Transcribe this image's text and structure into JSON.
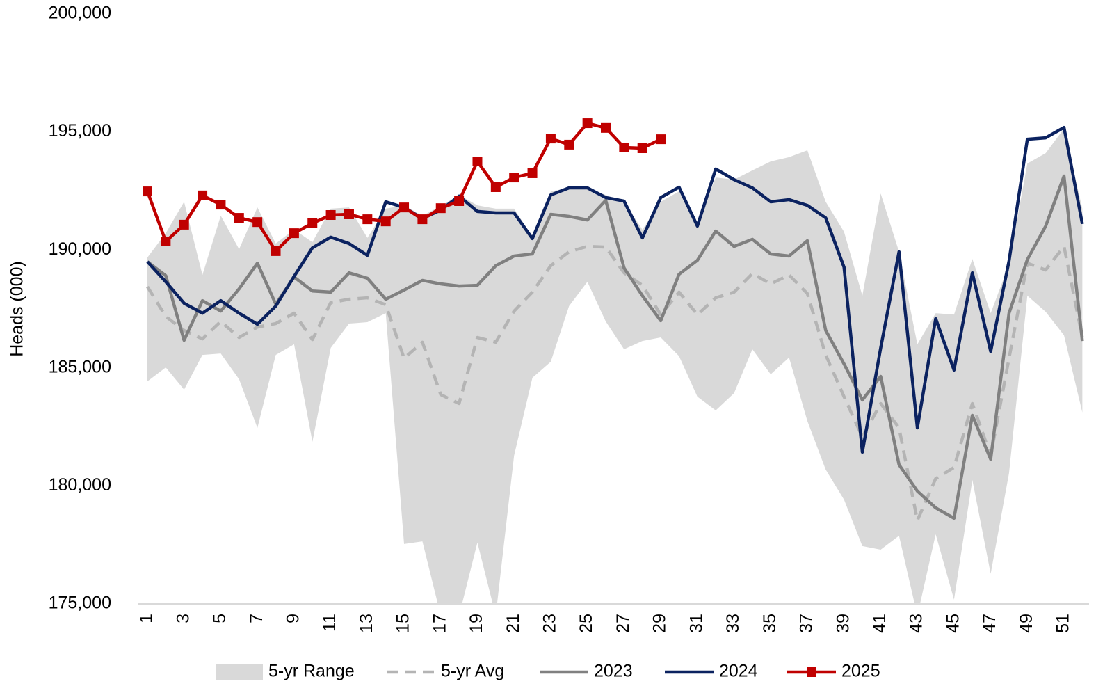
{
  "chart_data": {
    "type": "line",
    "ylabel": "Heads (000)",
    "categories": [
      "1",
      null,
      "3",
      null,
      "5",
      null,
      "7",
      null,
      "9",
      null,
      "11",
      null,
      "13",
      null,
      "15",
      null,
      "17",
      null,
      "19",
      null,
      "21",
      null,
      "23",
      null,
      "25",
      null,
      "27",
      null,
      "29",
      null,
      "31",
      null,
      "33",
      null,
      "35",
      null,
      "37",
      null,
      "39",
      null,
      "41",
      null,
      "43",
      null,
      "45",
      null,
      "47",
      null,
      "49",
      null,
      "51",
      null
    ],
    "ylim": [
      175000,
      200000
    ],
    "yticks": [
      {
        "value": 175000,
        "label": "175,000"
      },
      {
        "value": 180000,
        "label": "180,000"
      },
      {
        "value": 185000,
        "label": "185,000"
      },
      {
        "value": 190000,
        "label": "190,000"
      },
      {
        "value": 195000,
        "label": "195,000"
      },
      {
        "value": 200000,
        "label": "200,000"
      }
    ],
    "grid": false,
    "legend": "bottom",
    "band": {
      "name": "5-yr Range",
      "color": "#d9d9d9",
      "low": [
        184430,
        185020,
        184080,
        185550,
        185610,
        184520,
        182460,
        185550,
        186000,
        181870,
        185850,
        186880,
        186940,
        187320,
        177540,
        177650,
        174500,
        174500,
        177600,
        174500,
        181280,
        184580,
        185260,
        187620,
        188650,
        186970,
        185790,
        186140,
        186290,
        185500,
        183780,
        183200,
        183930,
        185790,
        184730,
        185440,
        182750,
        180690,
        179420,
        177450,
        177300,
        177890,
        174500,
        177950,
        175180,
        180250,
        176280,
        180540,
        188060,
        187380,
        186380,
        183110
      ],
      "high": [
        189680,
        190710,
        192040,
        188940,
        191450,
        190030,
        191800,
        190270,
        190860,
        190330,
        191750,
        191800,
        190510,
        191750,
        191890,
        191450,
        191860,
        192330,
        191890,
        191750,
        191750,
        190570,
        192480,
        192630,
        192630,
        192330,
        192040,
        190860,
        192040,
        192480,
        191160,
        193070,
        192980,
        193370,
        193750,
        193930,
        194220,
        192040,
        190770,
        188060,
        192390,
        189920,
        186000,
        187320,
        187260,
        189620,
        187320,
        189390,
        193660,
        194100,
        195140,
        191750
      ]
    },
    "series": [
      {
        "name": "5-yr Avg",
        "color": "#b4b4b4",
        "dash": true,
        "values": [
          188440,
          187180,
          186590,
          186230,
          186970,
          186290,
          186730,
          186880,
          187320,
          186200,
          187770,
          187910,
          187970,
          187680,
          185410,
          186090,
          183870,
          183490,
          186290,
          186090,
          187410,
          188210,
          189330,
          189920,
          190150,
          190120,
          189030,
          188500,
          187260,
          188210,
          187260,
          187970,
          188210,
          189000,
          188560,
          188940,
          188150,
          185550,
          183780,
          182070,
          183490,
          182460,
          178540,
          180310,
          180780,
          183490,
          181280,
          185410,
          189440,
          189150,
          190150,
          186290
        ]
      },
      {
        "name": "2023",
        "color": "#808080",
        "values": [
          189500,
          188910,
          186170,
          187850,
          187410,
          188350,
          189440,
          187700,
          188850,
          188260,
          188210,
          189030,
          188800,
          187910,
          188300,
          188710,
          188560,
          188470,
          188500,
          189330,
          189740,
          189830,
          191510,
          191420,
          191270,
          192100,
          189240,
          188060,
          187000,
          188970,
          189560,
          190800,
          190150,
          190450,
          189830,
          189740,
          190390,
          186590,
          185170,
          183640,
          184640,
          180900,
          179780,
          179070,
          178630,
          182990,
          181130,
          187320,
          189590,
          191010,
          193130,
          186140
        ]
      },
      {
        "name": "2024",
        "color": "#0b2260",
        "values": [
          189500,
          188650,
          187740,
          187320,
          187850,
          187320,
          186850,
          187620,
          188880,
          190090,
          190540,
          190270,
          189770,
          192040,
          191800,
          191330,
          191690,
          192280,
          191630,
          191570,
          191570,
          190480,
          192330,
          192630,
          192630,
          192220,
          192070,
          190510,
          192220,
          192660,
          191010,
          193430,
          192980,
          192630,
          192040,
          192130,
          191890,
          191360,
          189270,
          181430,
          185850,
          189920,
          182460,
          187090,
          184910,
          189030,
          185700,
          189530,
          194690,
          194750,
          195190,
          191100
        ]
      },
      {
        "name": "2025",
        "color": "#c00000",
        "marker": "square",
        "values": [
          192480,
          190360,
          191070,
          192310,
          191920,
          191360,
          191180,
          189950,
          190710,
          191130,
          191480,
          191510,
          191300,
          191210,
          191800,
          191300,
          191770,
          192070,
          193750,
          192660,
          193070,
          193250,
          194720,
          194460,
          195370,
          195170,
          194340,
          194310,
          194690,
          null,
          null,
          null,
          null,
          null,
          null,
          null,
          null,
          null,
          null,
          null,
          null,
          null,
          null,
          null,
          null,
          null,
          null,
          null,
          null,
          null,
          null,
          null
        ]
      }
    ]
  }
}
